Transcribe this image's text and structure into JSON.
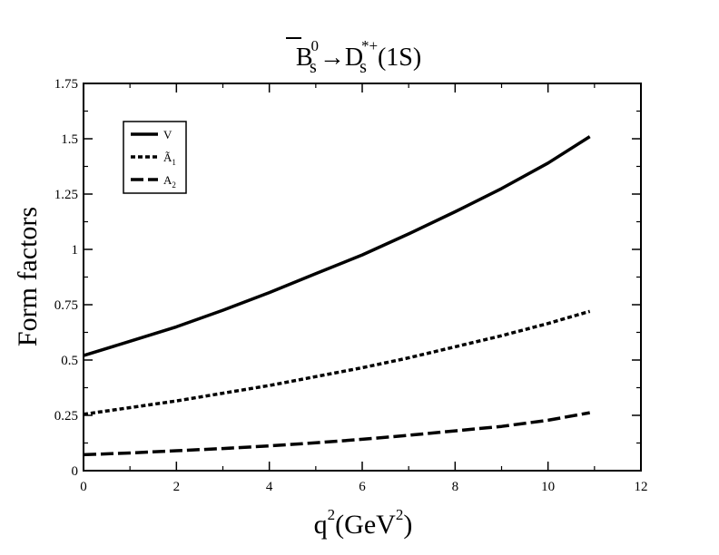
{
  "chart_data": {
    "type": "line",
    "title": {
      "parts": [
        {
          "text": "B",
          "role": "base",
          "overline": true
        },
        {
          "text": "0",
          "role": "sup"
        },
        {
          "text": "s",
          "role": "sub"
        },
        {
          "text": "→",
          "role": "base"
        },
        {
          "text": "D",
          "role": "base"
        },
        {
          "text": "*+",
          "role": "sup"
        },
        {
          "text": "s",
          "role": "sub"
        },
        {
          "text": "(1S)",
          "role": "base"
        }
      ]
    },
    "xlabel": {
      "main": "q",
      "sup": "2",
      "unit_open": "(GeV",
      "unit_sup": "2",
      "unit_close": ")"
    },
    "ylabel": "Form factors",
    "xlim": [
      0,
      12
    ],
    "ylim": [
      0,
      1.75
    ],
    "xticks": [
      "0",
      "2",
      "4",
      "6",
      "8",
      "10",
      "12"
    ],
    "yticks": [
      "0",
      "0.25",
      "0.5",
      "0.75",
      "1",
      "1.25",
      "1.5",
      "1.75"
    ],
    "grid": false,
    "legend_position": "top-left",
    "series": [
      {
        "name": "V",
        "legend": {
          "main": "V",
          "sub": ""
        },
        "style": "solid",
        "x": [
          0,
          1,
          2,
          3,
          4,
          5,
          6,
          7,
          8,
          9,
          10,
          10.9
        ],
        "y": [
          0.52,
          0.585,
          0.65,
          0.725,
          0.805,
          0.89,
          0.975,
          1.07,
          1.17,
          1.275,
          1.39,
          1.51
        ]
      },
      {
        "name": "Ã1",
        "legend": {
          "main": "Ã",
          "sub": "1"
        },
        "style": "dotted",
        "x": [
          0,
          1,
          2,
          3,
          4,
          5,
          6,
          7,
          8,
          9,
          10,
          10.9
        ],
        "y": [
          0.255,
          0.285,
          0.315,
          0.35,
          0.385,
          0.425,
          0.465,
          0.51,
          0.56,
          0.61,
          0.665,
          0.72
        ]
      },
      {
        "name": "A2",
        "legend": {
          "main": "A",
          "sub": "2"
        },
        "style": "dashed",
        "x": [
          0,
          1,
          2,
          3,
          4,
          5,
          6,
          7,
          8,
          9,
          10,
          10.9
        ],
        "y": [
          0.072,
          0.08,
          0.09,
          0.1,
          0.112,
          0.126,
          0.142,
          0.16,
          0.18,
          0.2,
          0.228,
          0.262
        ]
      }
    ]
  }
}
